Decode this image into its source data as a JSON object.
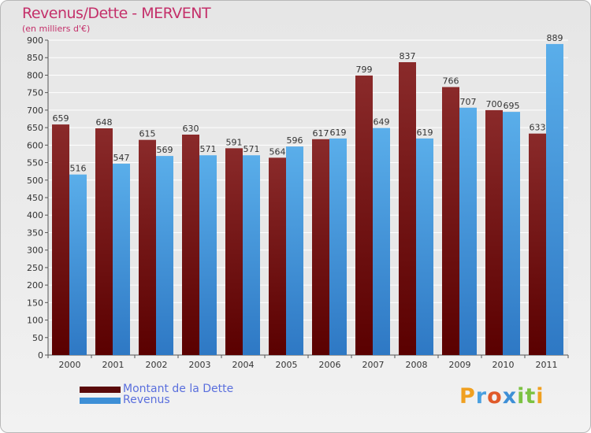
{
  "chart_data": {
    "type": "bar",
    "title": "Revenus/Dette - MERVENT",
    "subtitle": "(en milliers d'€)",
    "categories": [
      "2000",
      "2001",
      "2002",
      "2003",
      "2004",
      "2005",
      "2006",
      "2007",
      "2008",
      "2009",
      "2010",
      "2011"
    ],
    "series": [
      {
        "name": "Montant de la Dette",
        "values": [
          659,
          648,
          615,
          630,
          591,
          564,
          617,
          799,
          837,
          766,
          700,
          633
        ],
        "color": "#6e1414"
      },
      {
        "name": "Revenus",
        "values": [
          516,
          547,
          569,
          571,
          571,
          596,
          619,
          649,
          619,
          707,
          695,
          889
        ],
        "color": "#3d8fd6"
      }
    ],
    "ylim": [
      0,
      900
    ],
    "yticks": [
      0,
      50,
      100,
      150,
      200,
      250,
      300,
      350,
      400,
      450,
      500,
      550,
      600,
      650,
      700,
      750,
      800,
      850,
      900
    ],
    "grid": true,
    "legend_position": "bottom-left"
  },
  "logo": {
    "text": "Proxiti"
  },
  "colors": {
    "title": "#c4306a",
    "legend_text": "#5a6fdd"
  }
}
